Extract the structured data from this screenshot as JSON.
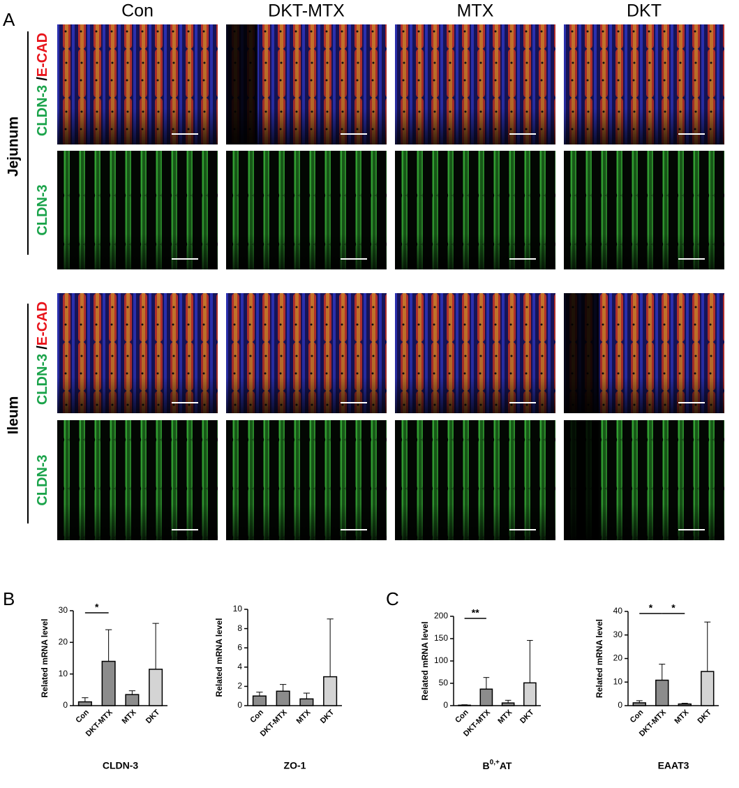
{
  "panel_labels": [
    "A",
    "B",
    "C"
  ],
  "columns": [
    "Con",
    "DKT-MTX",
    "MTX",
    "DKT"
  ],
  "row_groups": [
    {
      "label": "Jejunum"
    },
    {
      "label": "Ileum"
    }
  ],
  "image_rows": [
    {
      "green": "CLDN-3",
      "sep": "/",
      "red": "E-CAD"
    },
    {
      "green": "CLDN-3"
    },
    {
      "green": "CLDN-3",
      "sep": "/",
      "red": "E-CAD"
    },
    {
      "green": "CLDN-3"
    }
  ],
  "chart_data": [
    {
      "type": "bar",
      "title": "CLDN-3",
      "ylabel": "Related mRNA level",
      "categories": [
        "Con",
        "DKT-MTX",
        "MTX",
        "DKT"
      ],
      "values": [
        1.2,
        14,
        3.5,
        11.5
      ],
      "errors": [
        1.3,
        10,
        1.2,
        14.5
      ],
      "colors": [
        "#8c8c8c",
        "#8c8c8c",
        "#8c8c8c",
        "#d4d4d4"
      ],
      "ylim": [
        0,
        30
      ],
      "yticks": [
        0,
        10,
        20,
        30
      ],
      "significance": [
        {
          "from": 0,
          "to": 1,
          "label": "*"
        }
      ]
    },
    {
      "type": "bar",
      "title": "ZO-1",
      "ylabel": "Related mRNA level",
      "categories": [
        "Con",
        "DKT-MTX",
        "MTX",
        "DKT"
      ],
      "values": [
        1.0,
        1.5,
        0.7,
        3.0
      ],
      "errors": [
        0.4,
        0.7,
        0.6,
        6.0
      ],
      "colors": [
        "#8c8c8c",
        "#8c8c8c",
        "#8c8c8c",
        "#d4d4d4"
      ],
      "ylim": [
        0,
        10
      ],
      "yticks": [
        0,
        2,
        4,
        6,
        8,
        10
      ],
      "significance": []
    },
    {
      "type": "bar",
      "title_parts": [
        "B",
        "0,+",
        "AT"
      ],
      "ylabel": "Related mRNA level",
      "categories": [
        "Con",
        "DKT-MTX",
        "MTX",
        "DKT"
      ],
      "values": [
        1,
        37,
        6,
        51
      ],
      "errors": [
        1,
        26,
        6,
        95
      ],
      "colors": [
        "#8c8c8c",
        "#8c8c8c",
        "#8c8c8c",
        "#d4d4d4"
      ],
      "ylim": [
        0,
        200
      ],
      "yticks": [
        0,
        50,
        100,
        150,
        200
      ],
      "significance": [
        {
          "from": 0,
          "to": 1,
          "label": "**"
        }
      ]
    },
    {
      "type": "bar",
      "title": "EAAT3",
      "ylabel": "Related mRNA level",
      "categories": [
        "Con",
        "DKT-MTX",
        "MTX",
        "DKT"
      ],
      "values": [
        1.2,
        10.8,
        0.7,
        14.5
      ],
      "errors": [
        0.9,
        6.8,
        0.3,
        21
      ],
      "colors": [
        "#8c8c8c",
        "#8c8c8c",
        "#8c8c8c",
        "#d4d4d4"
      ],
      "ylim": [
        0,
        40
      ],
      "yticks": [
        0,
        10,
        20,
        30,
        40
      ],
      "significance": [
        {
          "from": 0,
          "to": 1,
          "label": "*"
        },
        {
          "from": 1,
          "to": 2,
          "label": "*"
        }
      ]
    }
  ]
}
